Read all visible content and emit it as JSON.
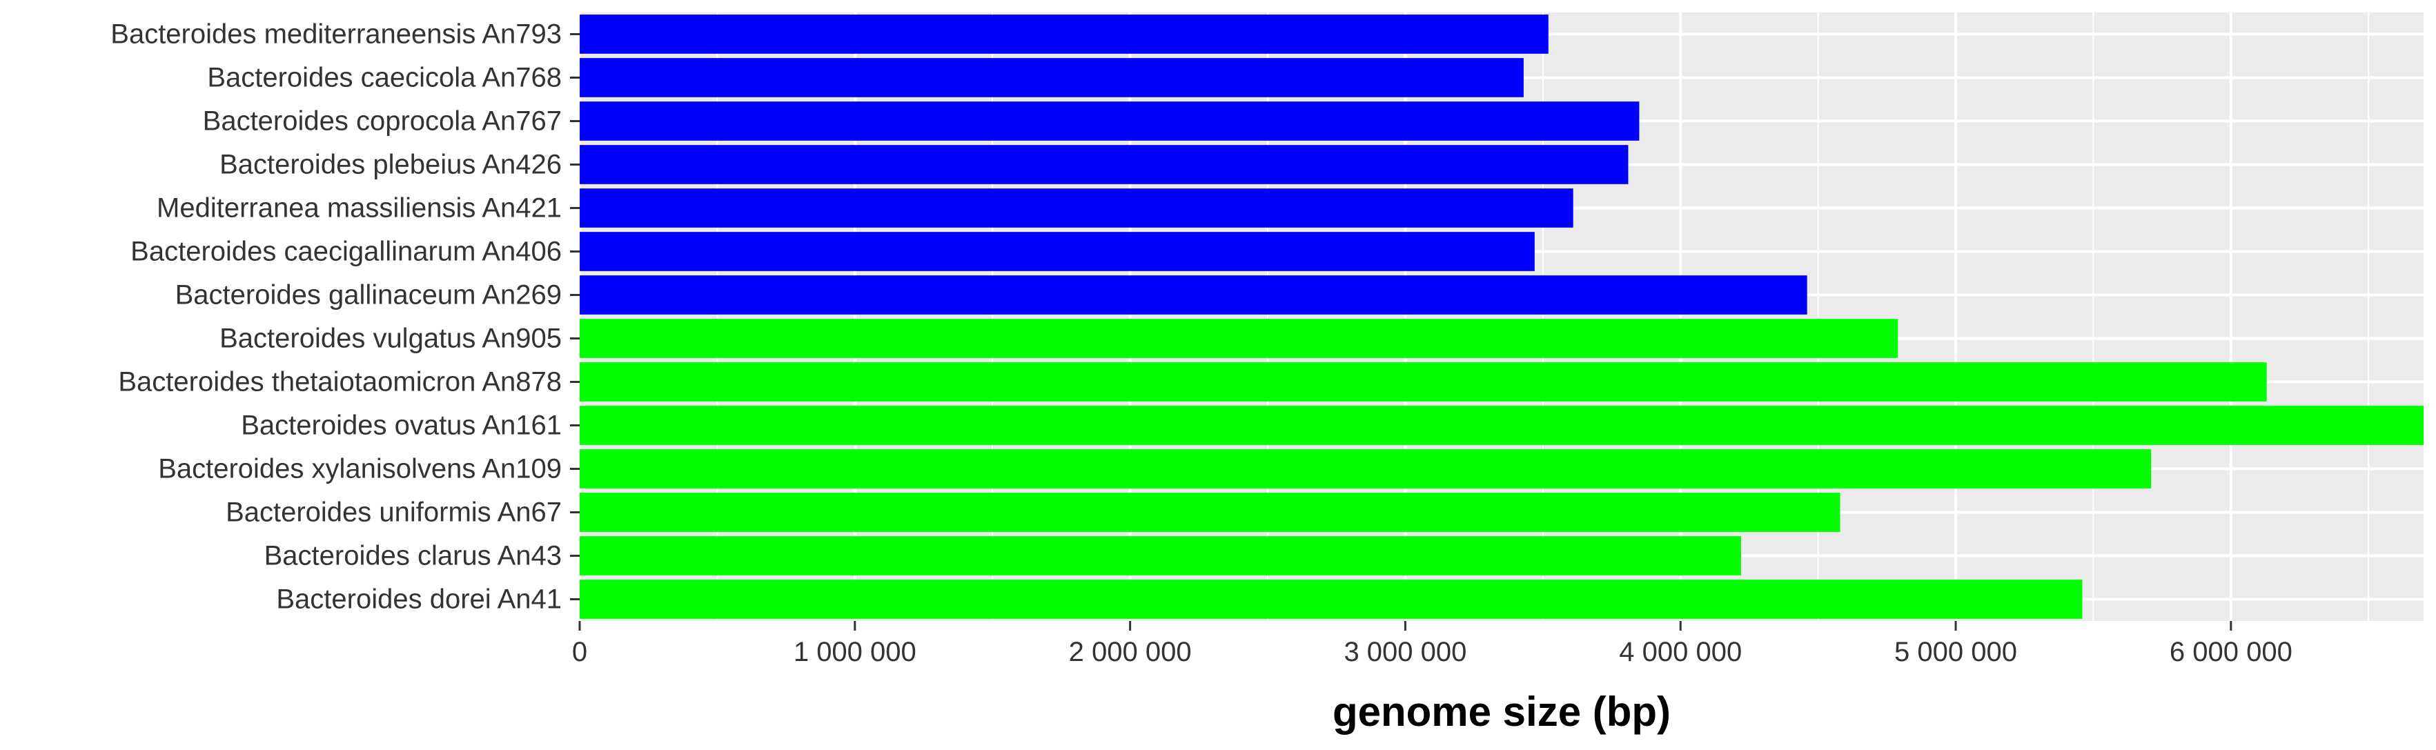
{
  "chart_data": {
    "type": "bar",
    "orientation": "horizontal",
    "title": "",
    "xlabel": "genome size (bp)",
    "ylabel": "",
    "xlim": [
      0,
      6700000
    ],
    "x_ticks": [
      0,
      1000000,
      2000000,
      3000000,
      4000000,
      5000000,
      6000000
    ],
    "x_tick_labels": [
      "0",
      "1 000 000",
      "2 000 000",
      "3 000 000",
      "4 000 000",
      "5 000 000",
      "6 000 000"
    ],
    "grid": true,
    "legend": "none",
    "categories": [
      "Bacteroides mediterraneensis An793",
      "Bacteroides caecicola An768",
      "Bacteroides coprocola  An767",
      "Bacteroides plebeius An426",
      "Mediterranea massiliensis An421",
      "Bacteroides caecigallinarum An406",
      "Bacteroides gallinaceum An269",
      "Bacteroides vulgatus  An905",
      "Bacteroides thetaiotaomicron  An878",
      "Bacteroides ovatus An161",
      "Bacteroides xylanisolvens An109",
      "Bacteroides uniformis An67",
      "Bacteroides clarus An43",
      "Bacteroides dorei An41"
    ],
    "values": [
      3520000,
      3430000,
      3850000,
      3810000,
      3610000,
      3470000,
      4460000,
      4790000,
      6130000,
      6700000,
      5710000,
      4580000,
      4220000,
      5460000
    ],
    "bar_colors": [
      "#0000ff",
      "#0000ff",
      "#0000ff",
      "#0000ff",
      "#0000ff",
      "#0000ff",
      "#0000ff",
      "#00ff00",
      "#00ff00",
      "#00ff00",
      "#00ff00",
      "#00ff00",
      "#00ff00",
      "#00ff00"
    ],
    "panel_background": "#ebebeb",
    "grid_color": "#ffffff"
  }
}
